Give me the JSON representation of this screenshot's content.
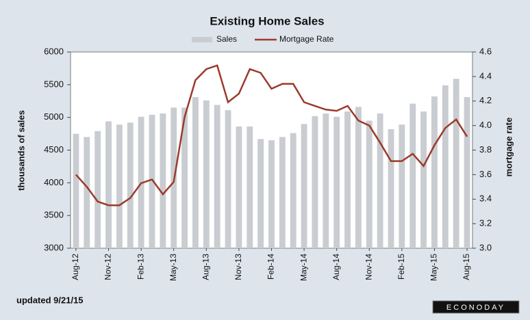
{
  "chart_data": {
    "type": "bar_line",
    "title": "Existing Home Sales",
    "y_label": "thousands of sales",
    "y2_label": "mortgage rate",
    "footnote": "updated 9/21/15",
    "logo": "ECONODAY",
    "categories": [
      "Aug-12",
      null,
      null,
      "Nov-12",
      null,
      null,
      "Feb-13",
      null,
      null,
      "May-13",
      null,
      null,
      "Aug-13",
      null,
      null,
      "Nov-13",
      null,
      null,
      "Feb-14",
      null,
      null,
      "May-14",
      null,
      null,
      "Aug-14",
      null,
      null,
      "Nov-14",
      null,
      null,
      "Feb-15",
      null,
      null,
      "May-15",
      null,
      null,
      "Aug-15"
    ],
    "series": [
      {
        "name": "Sales",
        "type": "bar",
        "color": "#c9cdd1",
        "values": [
          4750,
          4700,
          4790,
          4940,
          4890,
          4920,
          5010,
          5040,
          5060,
          5150,
          5150,
          5310,
          5260,
          5190,
          5110,
          4860,
          4860,
          4670,
          4650,
          4700,
          4760,
          4900,
          5020,
          5060,
          5010,
          5090,
          5160,
          4950,
          5060,
          4820,
          4890,
          5210,
          5090,
          5320,
          5490,
          5590,
          5310
        ]
      },
      {
        "name": "Mortgage Rate",
        "type": "line",
        "axis": "y2",
        "color": "#9b3a2a",
        "values": [
          3.6,
          3.5,
          3.38,
          3.35,
          3.35,
          3.41,
          3.53,
          3.56,
          3.44,
          3.54,
          4.07,
          4.37,
          4.46,
          4.49,
          4.19,
          4.26,
          4.46,
          4.43,
          4.3,
          4.34,
          4.34,
          4.19,
          4.16,
          4.13,
          4.12,
          4.16,
          4.04,
          4.0,
          3.86,
          3.71,
          3.71,
          3.77,
          3.67,
          3.84,
          3.98,
          4.05,
          3.91
        ]
      }
    ],
    "ylim": [
      3000,
      6000
    ],
    "yticks": [
      3000,
      3500,
      4000,
      4500,
      5000,
      5500,
      6000
    ],
    "y2lim": [
      3.0,
      4.6
    ],
    "y2ticks": [
      {
        "value": 3,
        "label": "3.0"
      },
      3.2,
      3.4,
      3.6,
      3.8,
      {
        "value": 4,
        "label": "4.0"
      },
      4.2,
      4.4,
      4.6
    ]
  }
}
